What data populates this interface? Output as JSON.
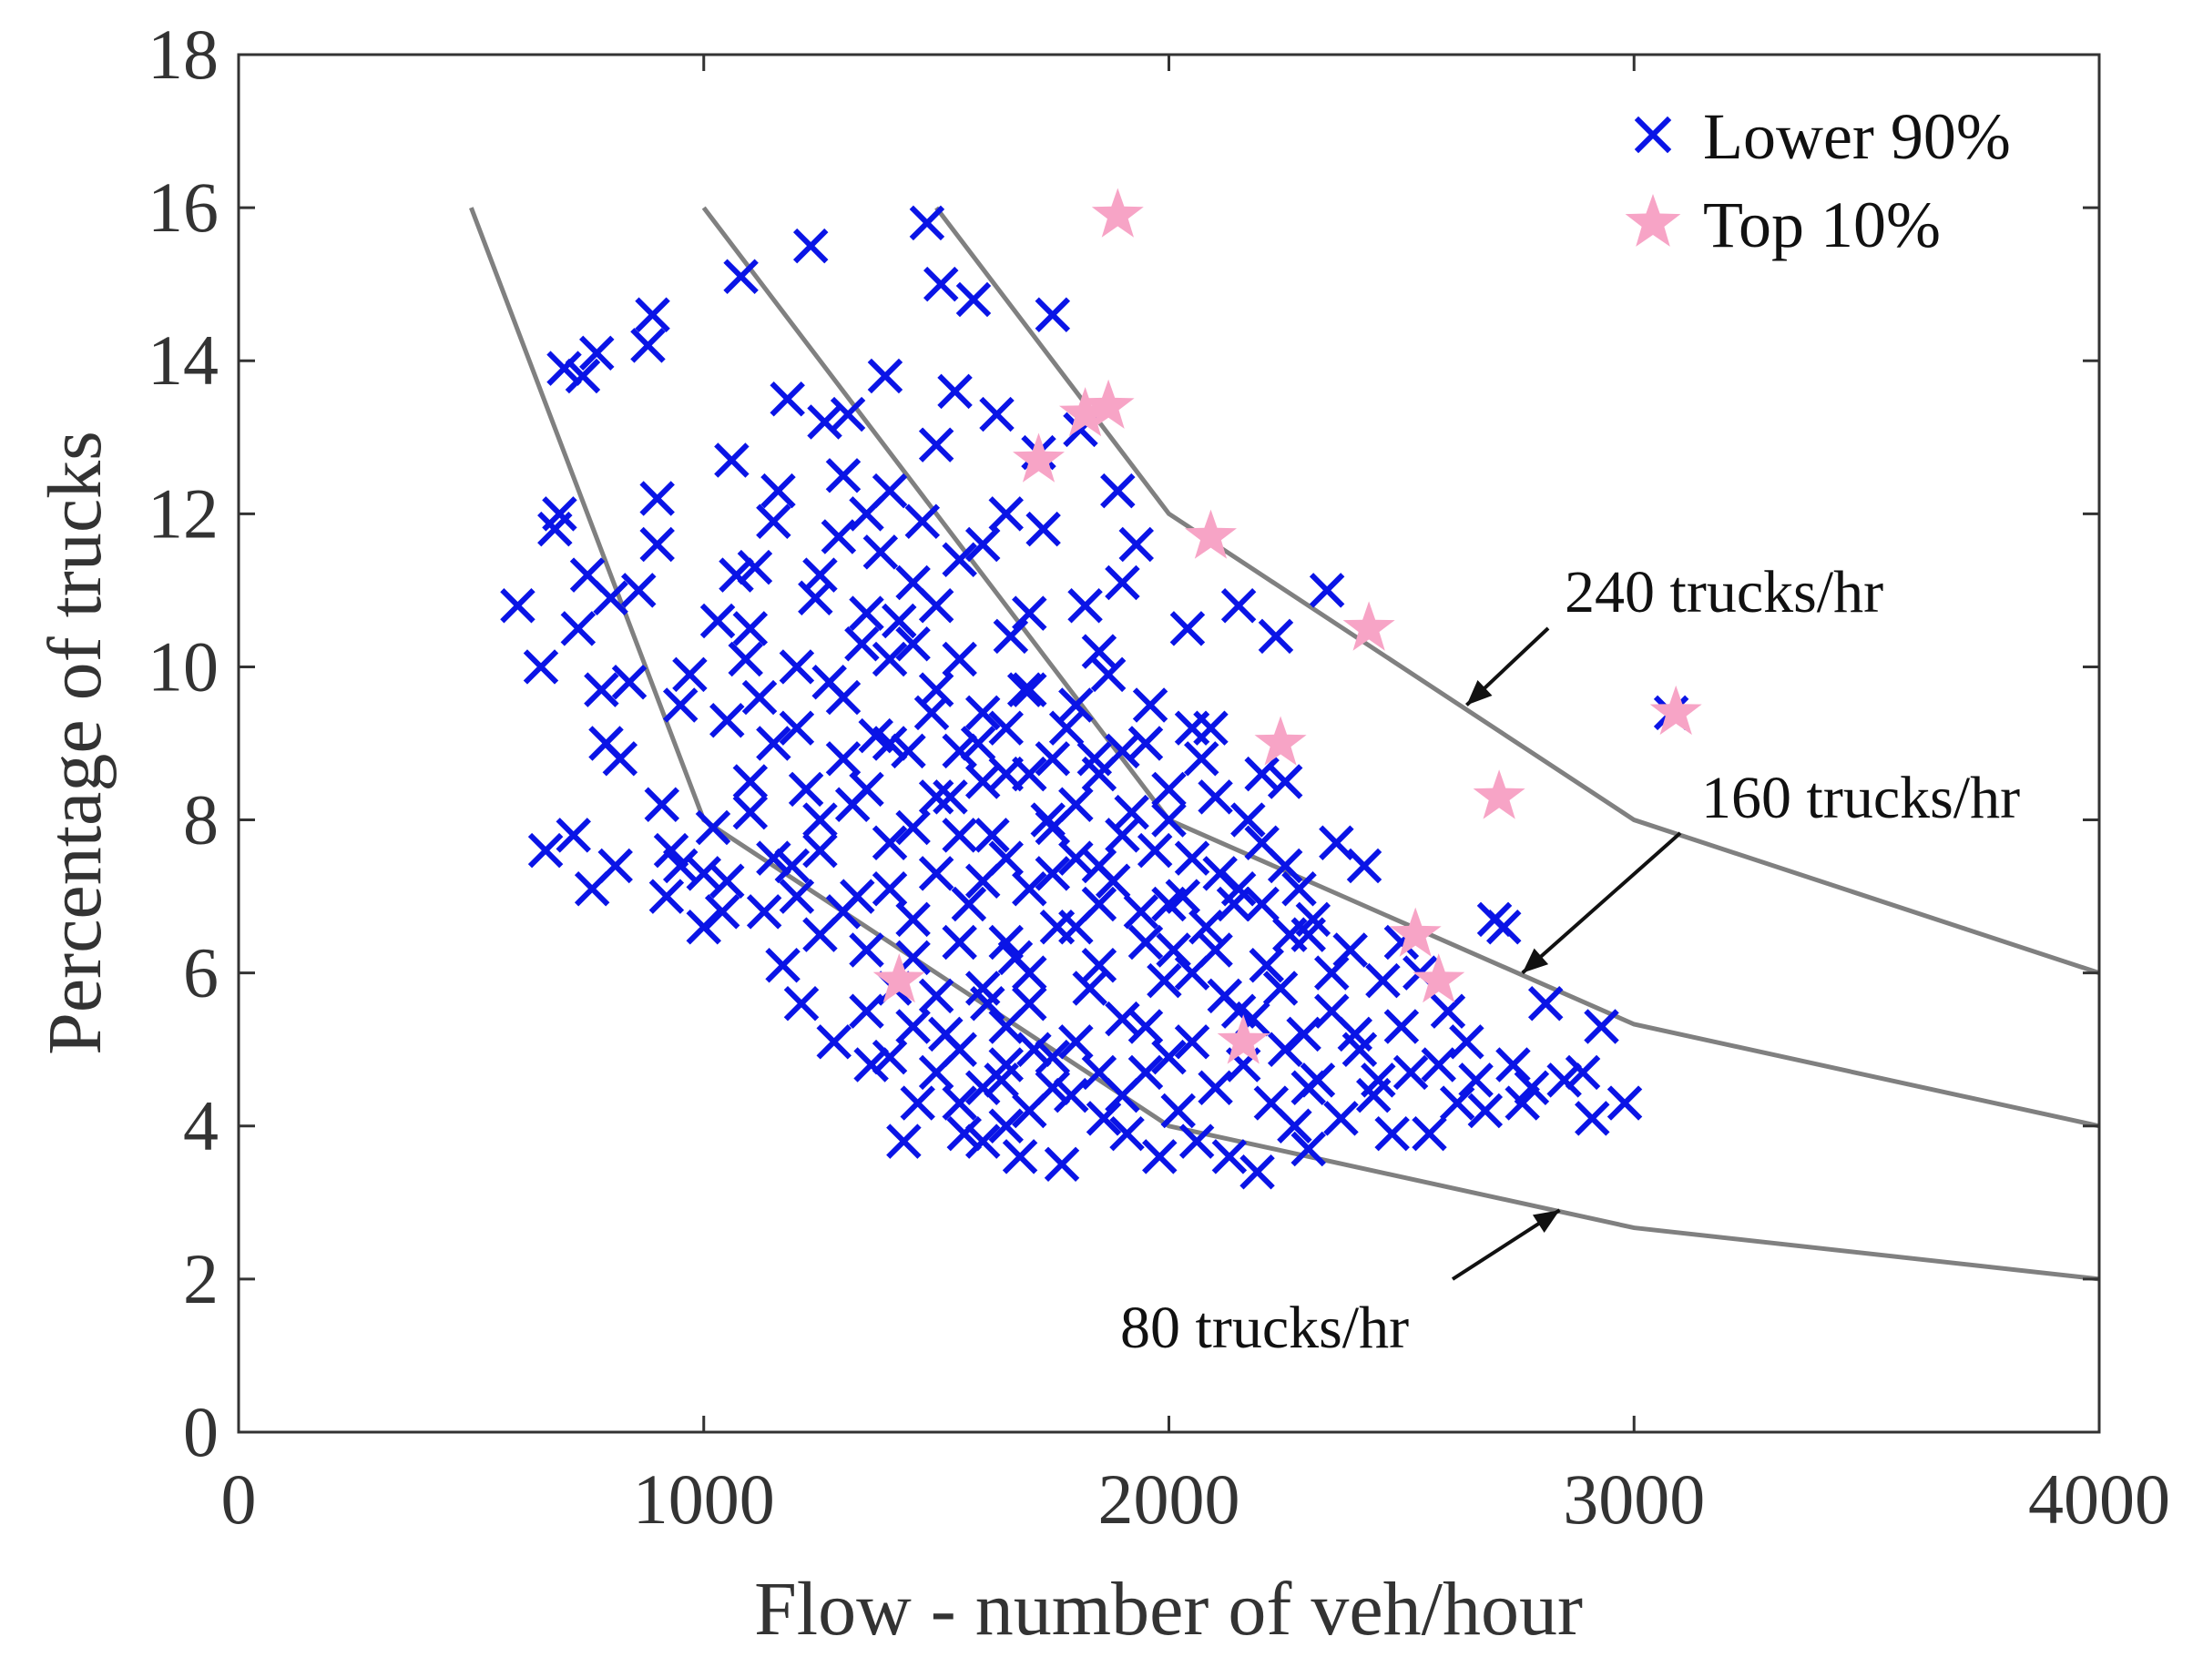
{
  "chart_data": {
    "type": "scatter",
    "title": "",
    "xlabel": "Flow - number of veh/hour",
    "ylabel": "Percentage of trucks",
    "xlim": [
      0,
      4000
    ],
    "ylim": [
      0,
      18
    ],
    "xticks": [
      0,
      1000,
      2000,
      3000,
      4000
    ],
    "yticks": [
      0,
      2,
      4,
      6,
      8,
      10,
      12,
      14,
      16,
      18
    ],
    "grid": false,
    "legend_position": "top-right",
    "series": [
      {
        "name": "Lower 90%",
        "marker": "x",
        "color": "#0a14e6",
        "points": [
          [
            600,
            10.8
          ],
          [
            650,
            10.0
          ],
          [
            660,
            7.6
          ],
          [
            680,
            11.8
          ],
          [
            690,
            12.0
          ],
          [
            700,
            13.9
          ],
          [
            720,
            7.8
          ],
          [
            730,
            10.5
          ],
          [
            740,
            13.8
          ],
          [
            750,
            11.2
          ],
          [
            760,
            7.1
          ],
          [
            770,
            14.1
          ],
          [
            780,
            9.7
          ],
          [
            790,
            9.0
          ],
          [
            800,
            10.9
          ],
          [
            810,
            7.4
          ],
          [
            820,
            8.8
          ],
          [
            840,
            9.8
          ],
          [
            860,
            11.0
          ],
          [
            880,
            14.2
          ],
          [
            890,
            14.6
          ],
          [
            900,
            12.2
          ],
          [
            900,
            11.6
          ],
          [
            910,
            8.2
          ],
          [
            920,
            7.0
          ],
          [
            930,
            7.6
          ],
          [
            950,
            9.5
          ],
          [
            970,
            9.9
          ],
          [
            1000,
            7.3
          ],
          [
            1020,
            7.9
          ],
          [
            1030,
            10.6
          ],
          [
            1040,
            6.8
          ],
          [
            1050,
            7.2
          ],
          [
            1060,
            12.7
          ],
          [
            1070,
            11.2
          ],
          [
            1080,
            15.1
          ],
          [
            1090,
            10.1
          ],
          [
            1100,
            8.5
          ],
          [
            1110,
            11.3
          ],
          [
            1120,
            9.6
          ],
          [
            1130,
            6.8
          ],
          [
            1150,
            11.9
          ],
          [
            1160,
            12.3
          ],
          [
            1170,
            6.1
          ],
          [
            1180,
            13.5
          ],
          [
            1190,
            7.4
          ],
          [
            1200,
            9.2
          ],
          [
            1210,
            5.6
          ],
          [
            1220,
            8.4
          ],
          [
            1230,
            15.5
          ],
          [
            1240,
            10.9
          ],
          [
            1250,
            6.5
          ],
          [
            1260,
            13.2
          ],
          [
            1270,
            9.8
          ],
          [
            1280,
            5.1
          ],
          [
            1290,
            11.7
          ],
          [
            1300,
            12.5
          ],
          [
            1310,
            13.3
          ],
          [
            1320,
            8.2
          ],
          [
            1330,
            7.0
          ],
          [
            1340,
            10.3
          ],
          [
            1350,
            6.3
          ],
          [
            1360,
            4.8
          ],
          [
            1370,
            9.1
          ],
          [
            1380,
            11.5
          ],
          [
            1390,
            13.8
          ],
          [
            1400,
            7.7
          ],
          [
            1410,
            5.8
          ],
          [
            1420,
            10.6
          ],
          [
            1430,
            3.8
          ],
          [
            1440,
            8.9
          ],
          [
            1450,
            6.7
          ],
          [
            1460,
            4.3
          ],
          [
            1470,
            11.9
          ],
          [
            1480,
            15.8
          ],
          [
            1490,
            9.4
          ],
          [
            1500,
            12.9
          ],
          [
            1500,
            7.3
          ],
          [
            1510,
            15.0
          ],
          [
            1520,
            5.2
          ],
          [
            1530,
            8.3
          ],
          [
            1540,
            13.6
          ],
          [
            1550,
            10.1
          ],
          [
            1560,
            3.9
          ],
          [
            1570,
            6.9
          ],
          [
            1580,
            14.8
          ],
          [
            1590,
            9.0
          ],
          [
            1600,
            11.6
          ],
          [
            1610,
            5.6
          ],
          [
            1620,
            7.8
          ],
          [
            1630,
            13.3
          ],
          [
            1640,
            4.6
          ],
          [
            1650,
            8.6
          ],
          [
            1660,
            10.4
          ],
          [
            1670,
            6.2
          ],
          [
            1680,
            3.6
          ],
          [
            1690,
            9.7
          ],
          [
            1700,
            7.1
          ],
          [
            1710,
            5.0
          ],
          [
            1720,
            12.8
          ],
          [
            1730,
            11.8
          ],
          [
            1740,
            8.0
          ],
          [
            1750,
            14.6
          ],
          [
            1760,
            6.6
          ],
          [
            1770,
            3.5
          ],
          [
            1780,
            9.2
          ],
          [
            1790,
            4.4
          ],
          [
            1800,
            7.5
          ],
          [
            1810,
            13.1
          ],
          [
            1820,
            10.8
          ],
          [
            1830,
            5.8
          ],
          [
            1840,
            8.8
          ],
          [
            1850,
            6.1
          ],
          [
            1860,
            4.1
          ],
          [
            1870,
            9.9
          ],
          [
            1880,
            7.2
          ],
          [
            1890,
            12.3
          ],
          [
            1900,
            5.4
          ],
          [
            1910,
            3.9
          ],
          [
            1920,
            8.1
          ],
          [
            1930,
            11.6
          ],
          [
            1940,
            6.8
          ],
          [
            1950,
            4.7
          ],
          [
            1960,
            9.5
          ],
          [
            1970,
            7.6
          ],
          [
            1980,
            3.6
          ],
          [
            1990,
            5.9
          ],
          [
            2000,
            8.4
          ],
          [
            2010,
            6.3
          ],
          [
            2020,
            4.2
          ],
          [
            2030,
            7.0
          ],
          [
            2040,
            10.5
          ],
          [
            2050,
            5.1
          ],
          [
            2060,
            3.8
          ],
          [
            2070,
            8.8
          ],
          [
            2080,
            6.6
          ],
          [
            2090,
            9.2
          ],
          [
            2100,
            4.5
          ],
          [
            2110,
            7.3
          ],
          [
            2120,
            5.7
          ],
          [
            2130,
            3.6
          ],
          [
            2140,
            6.9
          ],
          [
            2150,
            10.8
          ],
          [
            2160,
            4.8
          ],
          [
            2170,
            8.0
          ],
          [
            2180,
            5.4
          ],
          [
            2190,
            3.4
          ],
          [
            2200,
            7.7
          ],
          [
            2210,
            6.1
          ],
          [
            2220,
            4.3
          ],
          [
            2230,
            10.4
          ],
          [
            2240,
            5.8
          ],
          [
            2250,
            8.5
          ],
          [
            2260,
            6.5
          ],
          [
            2270,
            4.0
          ],
          [
            2280,
            7.1
          ],
          [
            2290,
            5.2
          ],
          [
            2300,
            3.7
          ],
          [
            2310,
            6.7
          ],
          [
            2320,
            4.6
          ],
          [
            2340,
            11.0
          ],
          [
            2350,
            5.5
          ],
          [
            2360,
            7.7
          ],
          [
            2370,
            4.1
          ],
          [
            2390,
            6.3
          ],
          [
            2410,
            5.0
          ],
          [
            2420,
            7.4
          ],
          [
            2440,
            4.4
          ],
          [
            2460,
            5.9
          ],
          [
            2480,
            3.9
          ],
          [
            2500,
            5.3
          ],
          [
            2520,
            4.7
          ],
          [
            2540,
            6.0
          ],
          [
            2560,
            3.9
          ],
          [
            2580,
            4.8
          ],
          [
            2600,
            5.5
          ],
          [
            2620,
            4.3
          ],
          [
            2640,
            5.1
          ],
          [
            2660,
            4.6
          ],
          [
            2680,
            4.2
          ],
          [
            2700,
            6.7
          ],
          [
            2720,
            6.6
          ],
          [
            2740,
            4.8
          ],
          [
            2760,
            4.3
          ],
          [
            2780,
            4.5
          ],
          [
            2810,
            5.6
          ],
          [
            2850,
            4.6
          ],
          [
            2890,
            4.7
          ],
          [
            2910,
            4.1
          ],
          [
            2930,
            5.3
          ],
          [
            2980,
            4.3
          ],
          [
            3080,
            9.4
          ],
          [
            1400,
            9.0
          ],
          [
            1450,
            10.3
          ],
          [
            1500,
            9.7
          ],
          [
            1550,
            8.9
          ],
          [
            1600,
            9.4
          ],
          [
            1650,
            7.5
          ],
          [
            1700,
            8.6
          ],
          [
            1750,
            7.9
          ],
          [
            1800,
            8.2
          ],
          [
            1850,
            7.4
          ],
          [
            1600,
            7.2
          ],
          [
            1650,
            6.4
          ],
          [
            1700,
            6.0
          ],
          [
            1750,
            7.3
          ],
          [
            1800,
            6.6
          ],
          [
            1850,
            6.9
          ],
          [
            1900,
            7.8
          ],
          [
            1950,
            6.4
          ],
          [
            2000,
            6.9
          ],
          [
            2050,
            6.0
          ],
          [
            1550,
            6.4
          ],
          [
            1600,
            5.8
          ],
          [
            1650,
            5.3
          ],
          [
            1700,
            5.6
          ],
          [
            1750,
            4.9
          ],
          [
            1800,
            5.1
          ],
          [
            1850,
            4.7
          ],
          [
            1900,
            4.4
          ],
          [
            1950,
            5.3
          ],
          [
            2000,
            4.9
          ],
          [
            1450,
            7.9
          ],
          [
            1500,
            8.3
          ],
          [
            1550,
            7.8
          ],
          [
            1600,
            8.5
          ],
          [
            1650,
            9.2
          ],
          [
            1700,
            9.7
          ],
          [
            1750,
            8.8
          ],
          [
            1800,
            9.5
          ],
          [
            1850,
            8.6
          ],
          [
            1900,
            8.9
          ],
          [
            1300,
            8.8
          ],
          [
            1350,
            8.4
          ],
          [
            1400,
            7.1
          ],
          [
            1450,
            6.2
          ],
          [
            1500,
            5.7
          ],
          [
            1550,
            5.0
          ],
          [
            1600,
            4.5
          ],
          [
            1650,
            4.0
          ],
          [
            1700,
            4.2
          ],
          [
            1750,
            4.5
          ],
          [
            1200,
            7.0
          ],
          [
            1250,
            7.6
          ],
          [
            1300,
            6.8
          ],
          [
            1350,
            5.5
          ],
          [
            1400,
            4.9
          ],
          [
            1450,
            5.3
          ],
          [
            1500,
            4.7
          ],
          [
            1550,
            4.3
          ],
          [
            1600,
            3.8
          ],
          [
            1650,
            4.8
          ],
          [
            2050,
            7.5
          ],
          [
            2100,
            6.3
          ],
          [
            2150,
            5.5
          ],
          [
            2200,
            6.9
          ],
          [
            2250,
            5.0
          ],
          [
            2300,
            4.5
          ],
          [
            2350,
            6.0
          ],
          [
            2400,
            5.2
          ],
          [
            2450,
            4.6
          ],
          [
            2500,
            6.4
          ],
          [
            1100,
            8.1
          ],
          [
            1150,
            9.0
          ],
          [
            1200,
            10.0
          ],
          [
            1250,
            8.0
          ],
          [
            1300,
            9.6
          ],
          [
            1350,
            10.7
          ],
          [
            1400,
            10.1
          ],
          [
            1450,
            11.1
          ],
          [
            1500,
            10.8
          ],
          [
            1550,
            11.4
          ],
          [
            950,
            7.4
          ],
          [
            1000,
            6.6
          ],
          [
            1050,
            9.3
          ],
          [
            1100,
            10.5
          ],
          [
            1150,
            7.5
          ],
          [
            1250,
            11.2
          ],
          [
            1350,
            12.0
          ],
          [
            1400,
            12.3
          ],
          [
            1650,
            12.0
          ],
          [
            1700,
            10.7
          ],
          [
            1850,
            10.2
          ],
          [
            1900,
            11.1
          ],
          [
            1950,
            9.0
          ],
          [
            2000,
            8.0
          ],
          [
            2050,
            9.2
          ],
          [
            2100,
            8.3
          ],
          [
            2150,
            7.1
          ],
          [
            2200,
            8.6
          ],
          [
            2250,
            7.4
          ],
          [
            2300,
            6.5
          ]
        ]
      },
      {
        "name": "Top 10%",
        "marker": "star",
        "color": "#f7a4c6",
        "points": [
          [
            1420,
            5.9
          ],
          [
            1720,
            12.7
          ],
          [
            1820,
            13.3
          ],
          [
            1870,
            13.4
          ],
          [
            1890,
            15.9
          ],
          [
            2090,
            11.7
          ],
          [
            2160,
            5.1
          ],
          [
            2240,
            9.0
          ],
          [
            2430,
            10.5
          ],
          [
            2530,
            6.5
          ],
          [
            2580,
            5.9
          ],
          [
            2710,
            8.3
          ],
          [
            3090,
            9.4
          ]
        ]
      }
    ],
    "reference_curves": [
      {
        "name": "80 trucks/hr",
        "x": [
          500,
          1000,
          2000,
          3000,
          4000
        ],
        "y": [
          16,
          8,
          4,
          2.67,
          2
        ]
      },
      {
        "name": "160 trucks/hr",
        "x": [
          1000,
          2000,
          3000,
          4000
        ],
        "y": [
          16,
          8,
          5.33,
          4
        ]
      },
      {
        "name": "240 trucks/hr",
        "x": [
          1500,
          2000,
          3000,
          4000
        ],
        "y": [
          16,
          12,
          8,
          6
        ]
      }
    ],
    "annotations": [
      {
        "text": "240 trucks/hr",
        "points_to": [
          2640,
          9.5
        ]
      },
      {
        "text": "160 trucks/hr",
        "points_to": [
          2760,
          6.0
        ]
      },
      {
        "text": "80 trucks/hr",
        "points_to": [
          2840,
          2.9
        ]
      }
    ]
  }
}
